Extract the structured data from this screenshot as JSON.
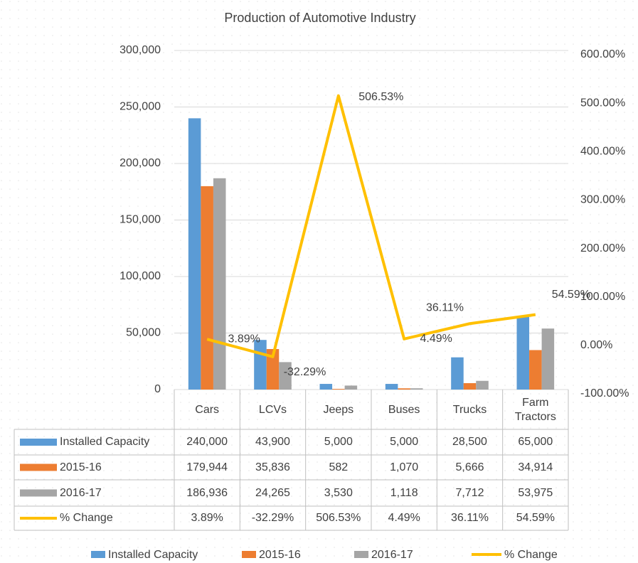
{
  "chart_data": {
    "type": "bar",
    "title": "Production of Automotive Industry",
    "categories": [
      "Cars",
      "LCVs",
      "Jeeps",
      "Buses",
      "Trucks",
      "Farm Tractors"
    ],
    "series": [
      {
        "name": "Installed Capacity",
        "color": "#5b9bd5",
        "values": [
          240000,
          43900,
          5000,
          5000,
          28500,
          65000
        ],
        "value_labels": [
          "240,000",
          "43,900",
          "5,000",
          "5,000",
          "28,500",
          "65,000"
        ]
      },
      {
        "name": "2015-16",
        "color": "#ed7d31",
        "values": [
          179944,
          35836,
          582,
          1070,
          5666,
          34914
        ],
        "value_labels": [
          "179,944",
          "35,836",
          "582",
          "1,070",
          "5,666",
          "34,914"
        ]
      },
      {
        "name": "2016-17",
        "color": "#a5a5a5",
        "values": [
          186936,
          24265,
          3530,
          1118,
          7712,
          53975
        ],
        "value_labels": [
          "186,936",
          "24,265",
          "3,530",
          "1,118",
          "7,712",
          "53,975"
        ]
      },
      {
        "name": "% Change",
        "type": "line",
        "axis": "y2",
        "color": "#ffc000",
        "values": [
          3.89,
          -32.29,
          506.53,
          4.49,
          36.11,
          54.59
        ],
        "value_labels": [
          "3.89%",
          "-32.29%",
          "506.53%",
          "4.49%",
          "36.11%",
          "54.59%"
        ]
      }
    ],
    "ylim": [
      0,
      300000
    ],
    "yticks": [
      0,
      {
        "value": 50000,
        "label": "50,000"
      },
      {
        "value": 100000,
        "label": "100,000"
      },
      {
        "value": 150000,
        "label": "150,000"
      },
      {
        "value": 200000,
        "label": "200,000"
      },
      {
        "value": 250000,
        "label": "250,000"
      },
      {
        "value": 300000,
        "label": "300,000"
      }
    ],
    "y2lim": [
      -100,
      600
    ],
    "y2ticks": [
      {
        "value": -100,
        "label": "-100.00%"
      },
      {
        "value": 0,
        "label": "0.00%"
      },
      {
        "value": 100,
        "label": "100.00%"
      },
      {
        "value": 200,
        "label": "200.00%"
      },
      {
        "value": 300,
        "label": "300.00%"
      },
      {
        "value": 400,
        "label": "400.00%"
      },
      {
        "value": 500,
        "label": "500.00%"
      },
      {
        "value": 600,
        "label": "600.00%"
      }
    ],
    "grid": true,
    "legend": "bottom",
    "data_table": true
  }
}
